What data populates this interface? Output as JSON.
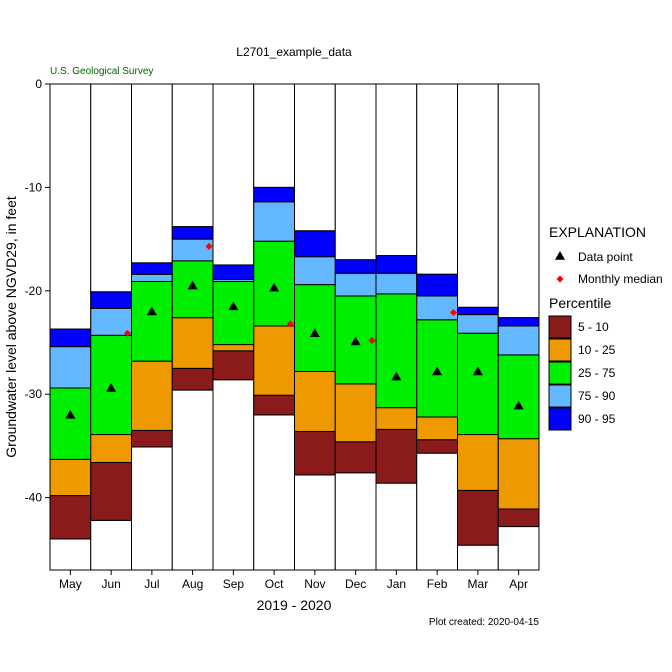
{
  "chart_data": {
    "type": "bar",
    "title": "L2701_example_data",
    "agency": "U.S. Geological Survey",
    "xlabel": "2019 - 2020",
    "ylabel": "Groundwater level above NGVD29, in feet",
    "footer": "Plot created: 2020-04-15",
    "ylim": [
      -47,
      0
    ],
    "y_ticks": [
      0,
      -10,
      -20,
      -30,
      -40
    ],
    "y_tick_labels": [
      "0",
      "-10",
      "-20",
      "-30",
      "-40"
    ],
    "grid": false,
    "legend_position": "right",
    "categories": [
      "May",
      "Jun",
      "Jul",
      "Aug",
      "Sep",
      "Oct",
      "Nov",
      "Dec",
      "Jan",
      "Feb",
      "Mar",
      "Apr"
    ],
    "percentile_breaks": {
      "p5": [
        -44.0,
        -42.2,
        -35.1,
        -29.6,
        -28.6,
        -32.0,
        -37.8,
        -37.6,
        -38.6,
        -35.7,
        -44.6,
        -42.8
      ],
      "p10": [
        -39.8,
        -36.6,
        -33.5,
        -27.5,
        -25.8,
        -30.1,
        -33.6,
        -34.6,
        -33.4,
        -34.4,
        -39.3,
        -41.1
      ],
      "p25": [
        -36.3,
        -33.9,
        -26.8,
        -22.6,
        -25.2,
        -23.4,
        -27.8,
        -29.0,
        -31.3,
        -32.2,
        -33.9,
        -34.3
      ],
      "p75": [
        -29.4,
        -24.3,
        -19.1,
        -17.1,
        -19.1,
        -15.2,
        -19.4,
        -20.5,
        -20.3,
        -22.8,
        -24.1,
        -26.2
      ],
      "p90": [
        -25.4,
        -21.7,
        -18.4,
        -15.0,
        -18.9,
        -11.4,
        -16.7,
        -18.3,
        -18.3,
        -20.5,
        -22.3,
        -23.4
      ],
      "p95": [
        -23.7,
        -20.1,
        -17.3,
        -13.8,
        -17.5,
        -10.0,
        -14.2,
        -17.0,
        -16.6,
        -18.4,
        -21.6,
        -22.6
      ]
    },
    "series": [
      {
        "name": "Data point",
        "x": [
          "May",
          "Jun",
          "Jul",
          "Aug",
          "Sep",
          "Oct",
          "Nov",
          "Dec",
          "Jan",
          "Feb",
          "Mar",
          "Apr"
        ],
        "values": [
          -32.0,
          -29.4,
          -22.0,
          -19.5,
          -21.5,
          -19.7,
          -24.1,
          -24.9,
          -28.3,
          -27.8,
          -27.8,
          -31.1
        ]
      },
      {
        "name": "Monthly median",
        "x": [
          "Jun",
          "Aug",
          "Oct",
          "Dec",
          "Feb"
        ],
        "values": [
          -24.1,
          -15.7,
          -23.2,
          -24.8,
          -22.1
        ]
      }
    ],
    "legend": {
      "title": "EXPLANATION",
      "symbols": [
        {
          "label": "Data point",
          "shape": "triangle",
          "color": "#000000"
        },
        {
          "label": "Monthly median",
          "shape": "diamond",
          "color": "#ff0000"
        }
      ],
      "percentile_title": "Percentile",
      "percentile_items": [
        {
          "label": "5 - 10",
          "color": "#8b1a1a"
        },
        {
          "label": "10 - 25",
          "color": "#ee9900"
        },
        {
          "label": "25 - 75",
          "color": "#00ee00"
        },
        {
          "label": "75 - 90",
          "color": "#63b8ff"
        },
        {
          "label": "90 - 95",
          "color": "#0000ff"
        }
      ]
    }
  }
}
